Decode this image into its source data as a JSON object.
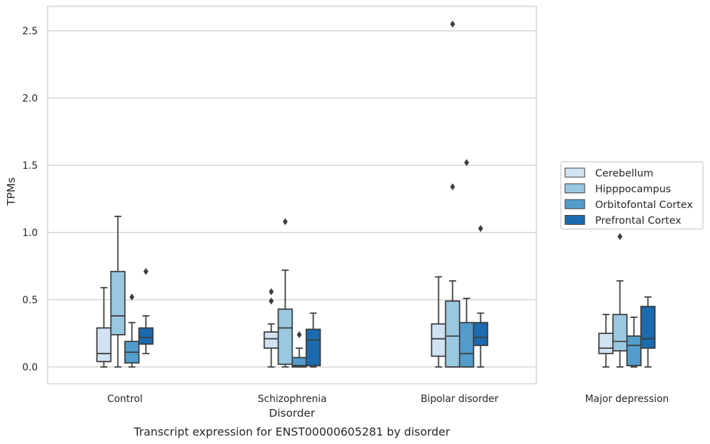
{
  "chart_data": {
    "type": "box",
    "xlabel": "Disorder",
    "ylabel": "TPMs",
    "caption": "Transcript expression for ENST00000605281 by disorder",
    "ylim": [
      -0.12,
      2.68
    ],
    "yticks": [
      0.0,
      0.5,
      1.0,
      1.5,
      2.0,
      2.5
    ],
    "ytick_labels": [
      "0.0",
      "0.5",
      "1.0",
      "1.5",
      "2.0",
      "2.5"
    ],
    "grid": "horizontal",
    "legend_position": "right",
    "categories": [
      "Control",
      "Schizophrenia",
      "Bipolar disorder",
      "Major depression"
    ],
    "series": [
      {
        "name": "Cerebellum",
        "color": "#d1e2f2",
        "boxes": [
          {
            "whislo": 0.0,
            "q1": 0.04,
            "med": 0.1,
            "q3": 0.29,
            "whishi": 0.59,
            "fliers": []
          },
          {
            "whislo": 0.0,
            "q1": 0.14,
            "med": 0.21,
            "q3": 0.26,
            "whishi": 0.32,
            "fliers": [
              0.49,
              0.56
            ]
          },
          {
            "whislo": 0.0,
            "q1": 0.08,
            "med": 0.21,
            "q3": 0.32,
            "whishi": 0.67,
            "fliers": []
          },
          {
            "whislo": 0.0,
            "q1": 0.1,
            "med": 0.14,
            "q3": 0.25,
            "whishi": 0.39,
            "fliers": []
          }
        ]
      },
      {
        "name": "Hipppocampus",
        "color": "#9ac8e0",
        "boxes": [
          {
            "whislo": 0.0,
            "q1": 0.24,
            "med": 0.38,
            "q3": 0.71,
            "whishi": 1.12,
            "fliers": []
          },
          {
            "whislo": 0.0,
            "q1": 0.02,
            "med": 0.29,
            "q3": 0.43,
            "whishi": 0.72,
            "fliers": [
              1.08
            ]
          },
          {
            "whislo": 0.0,
            "q1": 0.0,
            "med": 0.23,
            "q3": 0.49,
            "whishi": 0.64,
            "fliers": [
              1.34,
              2.55
            ]
          },
          {
            "whislo": 0.0,
            "q1": 0.12,
            "med": 0.19,
            "q3": 0.39,
            "whishi": 0.64,
            "fliers": [
              0.97,
              1.15
            ]
          }
        ]
      },
      {
        "name": "Orbitofontal Cortex",
        "color": "#529dcc",
        "boxes": [
          {
            "whislo": 0.0,
            "q1": 0.03,
            "med": 0.11,
            "q3": 0.19,
            "whishi": 0.33,
            "fliers": [
              0.52
            ]
          },
          {
            "whislo": 0.0,
            "q1": 0.0,
            "med": 0.01,
            "q3": 0.07,
            "whishi": 0.14,
            "fliers": [
              0.24
            ]
          },
          {
            "whislo": 0.0,
            "q1": 0.0,
            "med": 0.1,
            "q3": 0.33,
            "whishi": 0.51,
            "fliers": [
              1.52
            ]
          },
          {
            "whislo": 0.0,
            "q1": 0.01,
            "med": 0.16,
            "q3": 0.23,
            "whishi": 0.37,
            "fliers": []
          }
        ]
      },
      {
        "name": "Prefrontal Cortex",
        "color": "#1c6aaf",
        "boxes": [
          {
            "whislo": 0.1,
            "q1": 0.17,
            "med": 0.22,
            "q3": 0.29,
            "whishi": 0.38,
            "fliers": [
              0.71
            ]
          },
          {
            "whislo": 0.0,
            "q1": 0.01,
            "med": 0.2,
            "q3": 0.28,
            "whishi": 0.4,
            "fliers": []
          },
          {
            "whislo": 0.0,
            "q1": 0.16,
            "med": 0.22,
            "q3": 0.33,
            "whishi": 0.4,
            "fliers": [
              1.03
            ]
          },
          {
            "whislo": 0.0,
            "q1": 0.14,
            "med": 0.21,
            "q3": 0.45,
            "whishi": 0.52,
            "fliers": [
              1.12
            ]
          }
        ]
      }
    ]
  }
}
